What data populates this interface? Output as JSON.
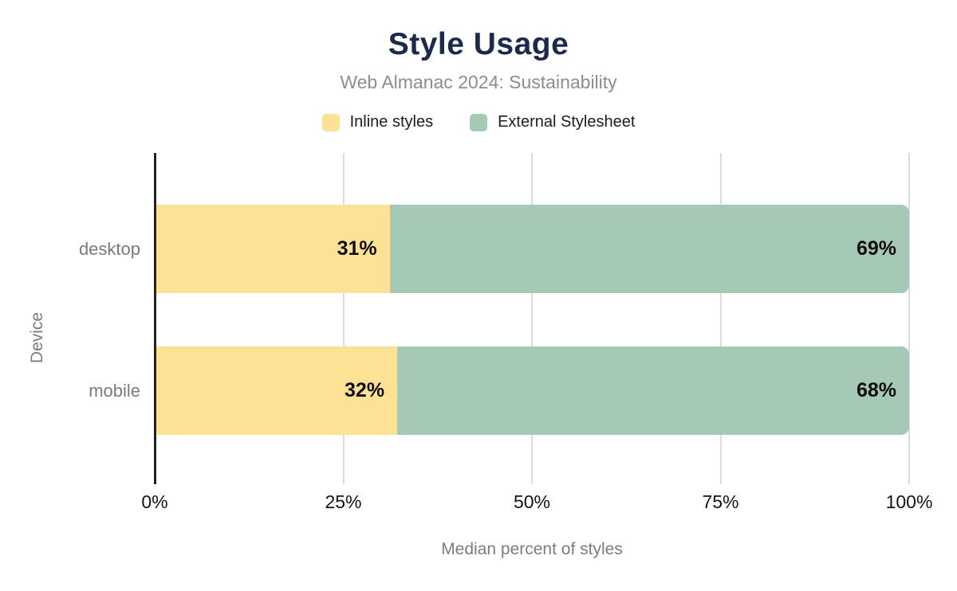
{
  "title": "Style Usage",
  "subtitle": "Web Almanac 2024: Sustainability",
  "legend": [
    {
      "label": "Inline styles",
      "color": "#fde296"
    },
    {
      "label": "External Stylesheet",
      "color": "#a6c9b5"
    }
  ],
  "axes": {
    "xlabel": "Median percent of styles",
    "ylabel": "Device"
  },
  "chart_data": {
    "type": "bar",
    "orientation": "horizontal",
    "stacked": true,
    "title": "Style Usage",
    "subtitle": "Web Almanac 2024: Sustainability",
    "categories": [
      "desktop",
      "mobile"
    ],
    "series": [
      {
        "name": "Inline styles",
        "color": "#fde296",
        "values": [
          31,
          32
        ]
      },
      {
        "name": "External Stylesheet",
        "color": "#a6c9b5",
        "values": [
          69,
          68
        ]
      }
    ],
    "value_suffix": "%",
    "xlabel": "Median percent of styles",
    "ylabel": "Device",
    "x_ticks": [
      "0%",
      "25%",
      "50%",
      "75%",
      "100%"
    ],
    "x_tick_values": [
      0,
      25,
      50,
      75,
      100
    ],
    "xlim": [
      0,
      100
    ],
    "grid": true,
    "legend_position": "top"
  },
  "colors": {
    "title": "#1b2a4a",
    "subtitle_text": "#8d8d8d",
    "axis_text": "#7b7b7b",
    "tick_text": "#141414",
    "gridline": "#dbdbdb",
    "axis_line": "#212121",
    "value_label": "#0e0e0e",
    "background": "#ffffff"
  }
}
